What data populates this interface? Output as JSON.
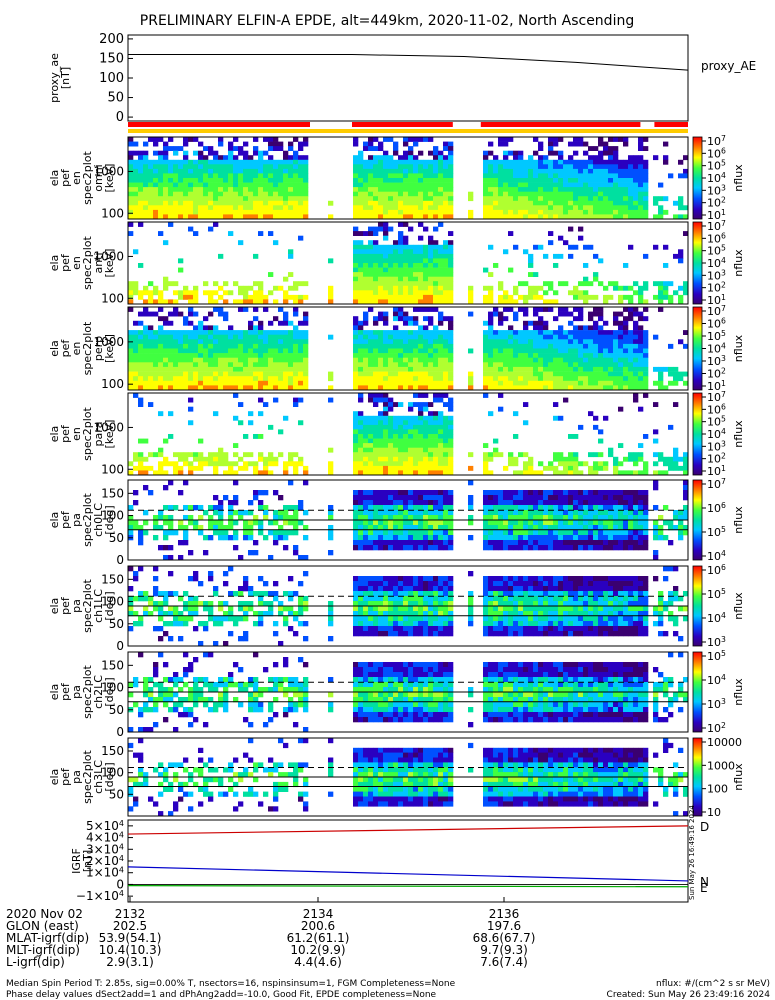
{
  "title": "PRELIMINARY ELFIN-A EPDE, alt=449km, 2020-11-02, North Ascending",
  "colors": {
    "red_bar": "#ff0000",
    "yellow_bar": "#ffcc00",
    "black": "#000000",
    "lc_line": "#000000"
  },
  "chart_data": [
    {
      "type": "line",
      "panel": "proxy_ae",
      "ylabel": [
        "proxy_ae",
        "[nT]"
      ],
      "legend": "proxy_AE",
      "y_ticks": [
        "200",
        "150",
        "100",
        "50",
        "0"
      ],
      "ylim": [
        -10,
        210
      ],
      "series": [
        {
          "name": "proxy_AE",
          "x": [
            0,
            0.4,
            0.6,
            0.8,
            0.9,
            1.0
          ],
          "values": [
            160,
            160,
            155,
            140,
            130,
            120
          ]
        }
      ]
    },
    {
      "type": "heatmap",
      "panel": "energy-spectrogram-1",
      "ylabel": [
        "ela",
        "pef",
        "en",
        "spec2plot",
        "omni",
        "[keV]"
      ],
      "y_ticks": [
        "1000",
        "100"
      ],
      "colorbar": {
        "label": "nflux",
        "ticks": [
          "10^7",
          "10^6",
          "10^5",
          "10^4",
          "10^3",
          "10^2",
          "10^1"
        ]
      }
    },
    {
      "type": "heatmap",
      "panel": "energy-spectrogram-2",
      "ylabel": [
        "ela",
        "pef",
        "en",
        "spec2plot",
        "anti",
        "[keV]"
      ],
      "y_ticks": [
        "1000",
        "100"
      ],
      "colorbar": {
        "label": "nflux",
        "ticks": [
          "10^7",
          "10^6",
          "10^5",
          "10^4",
          "10^3",
          "10^2",
          "10^1"
        ]
      }
    },
    {
      "type": "heatmap",
      "panel": "energy-spectrogram-3",
      "ylabel": [
        "ela",
        "pef",
        "en",
        "spec2plot",
        "perp",
        "[keV]"
      ],
      "y_ticks": [
        "1000",
        "100"
      ],
      "colorbar": {
        "label": "nflux",
        "ticks": [
          "10^7",
          "10^6",
          "10^5",
          "10^4",
          "10^3",
          "10^2",
          "10^1"
        ]
      }
    },
    {
      "type": "heatmap",
      "panel": "energy-spectrogram-4",
      "ylabel": [
        "ela",
        "pef",
        "en",
        "spec2plot",
        "para",
        "[keV]"
      ],
      "y_ticks": [
        "1000",
        "100"
      ],
      "colorbar": {
        "label": "nflux",
        "ticks": [
          "10^7",
          "10^6",
          "10^5",
          "10^4",
          "10^3",
          "10^2",
          "10^1"
        ]
      }
    },
    {
      "type": "heatmap",
      "panel": "pa-spectrogram-ch0",
      "ylabel": [
        "ela",
        "pef",
        "pa",
        "spec2plot",
        "ch0LC",
        "[deg]"
      ],
      "y_ticks": [
        "150",
        "100",
        "50",
        "0"
      ],
      "colorbar": {
        "label": "nflux",
        "ticks": [
          "10^7",
          "10^6",
          "10^5",
          "10^4"
        ]
      }
    },
    {
      "type": "heatmap",
      "panel": "pa-spectrogram-ch1",
      "ylabel": [
        "ela",
        "pef",
        "pa",
        "spec2plot",
        "ch1LC",
        "[deg]"
      ],
      "y_ticks": [
        "150",
        "100",
        "50",
        "0"
      ],
      "colorbar": {
        "label": "nflux",
        "ticks": [
          "10^6",
          "10^5",
          "10^4",
          "10^3"
        ]
      }
    },
    {
      "type": "heatmap",
      "panel": "pa-spectrogram-ch2",
      "ylabel": [
        "ela",
        "pef",
        "pa",
        "spec2plot",
        "ch2LC",
        "[deg]"
      ],
      "y_ticks": [
        "150",
        "100",
        "50",
        "0"
      ],
      "colorbar": {
        "label": "nflux",
        "ticks": [
          "10^5",
          "10^4",
          "10^3",
          "10^2"
        ]
      }
    },
    {
      "type": "heatmap",
      "panel": "pa-spectrogram-ch3",
      "ylabel": [
        "ela",
        "pef",
        "pa",
        "spec2plot",
        "ch3LC",
        "[deg]"
      ],
      "y_ticks": [
        "150",
        "100",
        "50"
      ],
      "colorbar": {
        "label": "nflux",
        "ticks": [
          "10000",
          "1000",
          "100",
          "10"
        ]
      }
    },
    {
      "type": "line",
      "panel": "igrf",
      "ylabel": [
        "IGRF",
        "[nT]"
      ],
      "y_ticks": [
        "5×10^4",
        "4×10^4",
        "3×10^4",
        "2×10^4",
        "1×10^4",
        "0",
        "−1×10^4"
      ],
      "ylim": [
        -15000,
        55000
      ],
      "series": [
        {
          "name": "D",
          "x": [
            0,
            1
          ],
          "values": [
            43000,
            50000
          ],
          "color": "#cc0000"
        },
        {
          "name": "N",
          "x": [
            0,
            1
          ],
          "values": [
            15000,
            3000
          ],
          "color": "#0000cc"
        },
        {
          "name": "E",
          "x": [
            0,
            1
          ],
          "values": [
            -1000,
            -2000
          ],
          "color": "#00aa00"
        }
      ],
      "side_stamp": "Sun May 26 16:49:16 2024"
    }
  ],
  "time_axis": {
    "rows": [
      {
        "label": "2020 Nov 02",
        "values": [
          "2132",
          "2134",
          "2136"
        ]
      },
      {
        "label": "GLON (east)",
        "values": [
          "202.5",
          "200.6",
          "197.6"
        ]
      },
      {
        "label": "MLAT-igrf(dip)",
        "values": [
          "53.9(54.1)",
          "61.2(61.1)",
          "68.6(67.7)"
        ]
      },
      {
        "label": "MLT-igrf(dip)",
        "values": [
          "10.4(10.3)",
          "10.2(9.9)",
          "9.7(9.3)"
        ]
      },
      {
        "label": "L-igrf(dip)",
        "values": [
          "2.9(3.1)",
          "4.4(4.6)",
          "7.6(7.4)"
        ]
      }
    ]
  },
  "footer": {
    "line1": "Median Spin Period T: 2.85s, sig=0.00% T, nsectors=16, nspinsinsum=1, FGM Completeness=None",
    "line2": "Phase delay values dSect2add=1 and dPhAng2add=-10.0, Good Fit, EPDE completeness=None",
    "units": "nflux: #/(cm^2 s sr MeV)",
    "created": "Created: Sun May 26 23:49:16 2024"
  }
}
